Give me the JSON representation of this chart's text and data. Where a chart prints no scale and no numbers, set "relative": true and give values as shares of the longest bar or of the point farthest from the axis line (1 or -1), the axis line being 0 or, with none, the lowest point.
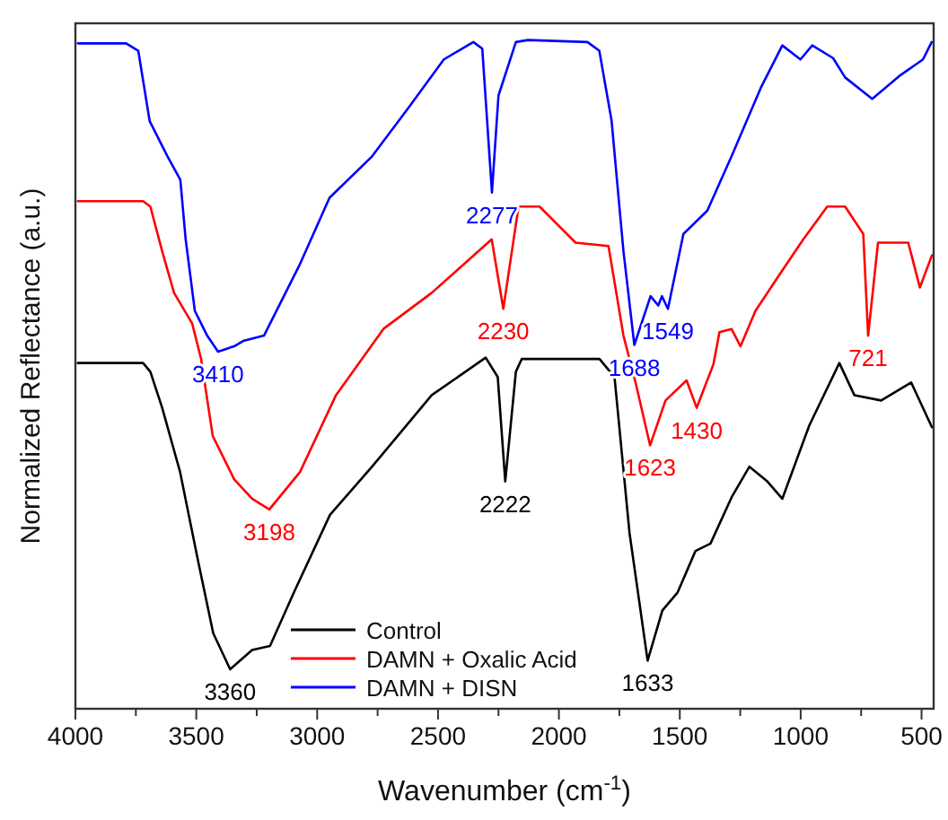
{
  "chart_data": {
    "type": "line",
    "relative": true,
    "xlabel": "Wavenumber (cm$^{-1}$)",
    "ylabel": "Normalized Reflectance (a.u.)",
    "xlim": [
      4000,
      450
    ],
    "xticks": [
      4000,
      {
        "value": 3750,
        "label": null
      },
      3500,
      {
        "value": 3250,
        "label": null
      },
      3000,
      {
        "value": 2750,
        "label": null
      },
      2500,
      {
        "value": 2250,
        "label": null
      },
      2000,
      {
        "value": 1750,
        "label": null
      },
      1500,
      {
        "value": 1250,
        "label": null
      },
      1000,
      {
        "value": 750,
        "label": null
      },
      500
    ],
    "legend": "bottom left",
    "grid": false,
    "marker": "none",
    "line_style": "solid",
    "series": [
      {
        "name": "Control",
        "color": "#000000",
        "x": [
          3990,
          3720,
          3690,
          3641,
          3567,
          3492,
          3430,
          3360,
          3269,
          3195,
          3096,
          2947,
          2773,
          2526,
          2303,
          2253,
          2222,
          2178,
          2154,
          1832,
          1770,
          1708,
          1633,
          1572,
          1509,
          1435,
          1373,
          1286,
          1212,
          1138,
          1076,
          964,
          840,
          778,
          667,
          543,
          457
        ],
        "values": [
          0.517,
          0.517,
          0.504,
          0.45,
          0.354,
          0.22,
          0.113,
          0.059,
          0.088,
          0.094,
          0.174,
          0.29,
          0.362,
          0.469,
          0.525,
          0.496,
          0.34,
          0.504,
          0.523,
          0.523,
          0.496,
          0.263,
          0.072,
          0.147,
          0.174,
          0.236,
          0.247,
          0.316,
          0.362,
          0.34,
          0.314,
          0.424,
          0.517,
          0.469,
          0.461,
          0.488,
          0.421
        ]
      },
      {
        "name": "DAMN + Oxalic Acid",
        "color": "#ff0000",
        "x": [
          3990,
          3720,
          3690,
          3641,
          3592,
          3517,
          3480,
          3432,
          3343,
          3269,
          3198,
          3071,
          2922,
          2726,
          2526,
          2278,
          2230,
          2167,
          2080,
          1931,
          1795,
          1733,
          1683,
          1623,
          1559,
          1472,
          1430,
          1361,
          1336,
          1286,
          1249,
          1187,
          1088,
          989,
          890,
          816,
          741,
          721,
          680,
          555,
          507,
          457
        ],
        "values": [
          0.759,
          0.759,
          0.751,
          0.684,
          0.622,
          0.576,
          0.523,
          0.408,
          0.343,
          0.314,
          0.298,
          0.354,
          0.469,
          0.568,
          0.622,
          0.702,
          0.598,
          0.751,
          0.751,
          0.697,
          0.692,
          0.558,
          0.488,
          0.394,
          0.461,
          0.491,
          0.45,
          0.515,
          0.563,
          0.568,
          0.542,
          0.595,
          0.649,
          0.702,
          0.751,
          0.751,
          0.71,
          0.558,
          0.697,
          0.697,
          0.63,
          0.678
        ]
      },
      {
        "name": "DAMN + DISN",
        "color": "#0000ff",
        "x": [
          3990,
          3790,
          3740,
          3693,
          3619,
          3566,
          3544,
          3506,
          3455,
          3410,
          3344,
          3306,
          3220,
          3071,
          2949,
          2773,
          2624,
          2476,
          2354,
          2317,
          2277,
          2250,
          2178,
          2128,
          1882,
          1833,
          1782,
          1733,
          1688,
          1621,
          1589,
          1574,
          1549,
          1485,
          1386,
          1286,
          1163,
          1076,
          1001,
          952,
          866,
          816,
          704,
          593,
          494,
          458
        ],
        "values": [
          0.995,
          0.995,
          0.984,
          0.879,
          0.826,
          0.791,
          0.702,
          0.595,
          0.558,
          0.534,
          0.542,
          0.55,
          0.558,
          0.665,
          0.764,
          0.826,
          0.898,
          0.971,
          0.997,
          0.987,
          0.772,
          0.917,
          0.997,
          1,
          0.997,
          0.984,
          0.879,
          0.684,
          0.544,
          0.617,
          0.603,
          0.617,
          0.598,
          0.71,
          0.745,
          0.826,
          0.93,
          0.992,
          0.971,
          0.992,
          0.973,
          0.944,
          0.912,
          0.946,
          0.971,
          0.997
        ]
      }
    ],
    "annotations": [
      {
        "text": "3360",
        "x": 3360,
        "y": 0.059
      },
      {
        "text": "2222",
        "x": 2222,
        "y": 0.34
      },
      {
        "text": "1633",
        "x": 1633,
        "y": 0.072
      },
      {
        "text": "3198",
        "x": 3198,
        "y": 0.298
      },
      {
        "text": "2230",
        "x": 2230,
        "y": 0.598
      },
      {
        "text": "1623",
        "x": 1623,
        "y": 0.394
      },
      {
        "text": "1430",
        "x": 1430,
        "y": 0.45
      },
      {
        "text": "721",
        "x": 721,
        "y": 0.558
      },
      {
        "text": "3410",
        "x": 3410,
        "y": 0.534
      },
      {
        "text": "2277",
        "x": 2277,
        "y": 0.772
      },
      {
        "text": "1688",
        "x": 1688,
        "y": 0.544
      },
      {
        "text": "1549",
        "x": 1549,
        "y": 0.598
      }
    ]
  }
}
